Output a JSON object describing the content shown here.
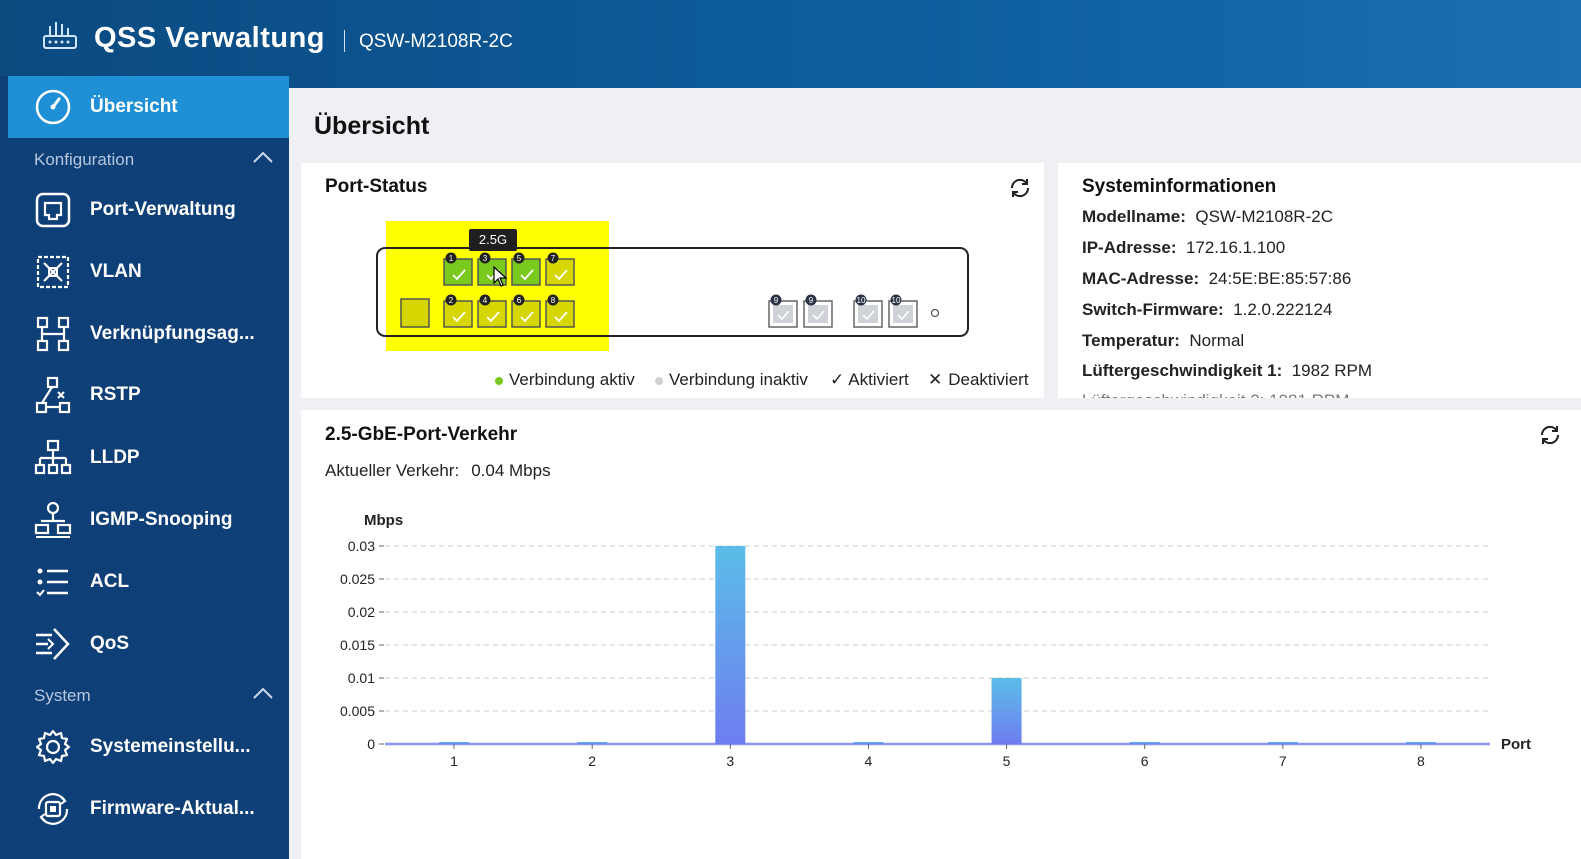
{
  "header": {
    "app_title": "QSS Verwaltung",
    "model": "QSW-M2108R-2C"
  },
  "sidebar": {
    "active": {
      "label": "Übersicht",
      "icon": "gauge-icon"
    },
    "sections": [
      {
        "label": "Konfiguration",
        "items": [
          {
            "label": "Port-Verwaltung",
            "icon": "port-icon"
          },
          {
            "label": "VLAN",
            "icon": "vlan-icon"
          },
          {
            "label": "Verknüpfungsag...",
            "icon": "link-aggregation-icon"
          },
          {
            "label": "RSTP",
            "icon": "rstp-icon"
          },
          {
            "label": "LLDP",
            "icon": "lldp-icon"
          },
          {
            "label": "IGMP-Snooping",
            "icon": "igmp-icon"
          },
          {
            "label": "ACL",
            "icon": "acl-icon"
          },
          {
            "label": "QoS",
            "icon": "qos-icon"
          }
        ]
      },
      {
        "label": "System",
        "items": [
          {
            "label": "Systemeinstellu...",
            "icon": "gear-icon"
          },
          {
            "label": "Firmware-Aktual...",
            "icon": "firmware-icon"
          }
        ]
      }
    ]
  },
  "main": {
    "page_title": "Übersicht",
    "port_status": {
      "title": "Port-Status",
      "tooltip": "2.5G",
      "top_ports": [
        "1",
        "3",
        "5",
        "7"
      ],
      "bottom_ports": [
        "2",
        "4",
        "6",
        "8"
      ],
      "sfp_ports": [
        "9",
        "9",
        "10",
        "10"
      ],
      "legend": {
        "active": "Verbindung  aktiv",
        "inactive": "Verbindung  inaktiv",
        "enabled": "Aktiviert",
        "disabled": "Deaktiviert"
      },
      "colors": {
        "active": "#7ac91f",
        "highlight": "#ffff00"
      }
    },
    "system_info": {
      "title": "Systeminformationen",
      "rows": [
        {
          "key": "Modellname:",
          "value": "QSW-M2108R-2C"
        },
        {
          "key": "IP-Adresse:",
          "value": "172.16.1.100"
        },
        {
          "key": "MAC-Adresse:",
          "value": "24:5E:BE:85:57:86"
        },
        {
          "key": "Switch-Firmware:",
          "value": "1.2.0.222124"
        },
        {
          "key": "Temperatur:",
          "value": "Normal"
        },
        {
          "key": "Lüftergeschwindigkeit 1:",
          "value": "1982 RPM"
        }
      ]
    },
    "traffic": {
      "title": "2.5-GbE-Port-Verkehr",
      "current_label": "Aktueller  Verkehr:",
      "current_value": "0.04  Mbps"
    }
  },
  "chart_data": {
    "type": "bar",
    "ylabel": "Mbps",
    "xlabel": "Port",
    "categories": [
      "1",
      "2",
      "3",
      "4",
      "5",
      "6",
      "7",
      "8"
    ],
    "values": [
      0,
      0,
      0.03,
      0,
      0.01,
      0,
      0,
      0
    ],
    "yticks": [
      "0",
      "0.005",
      "0.01",
      "0.015",
      "0.02",
      "0.025",
      "0.03"
    ],
    "ylim": [
      0,
      0.03
    ],
    "grid": true,
    "bar_color_top": "#5bbde8",
    "bar_color_bottom": "#6e7df0"
  }
}
